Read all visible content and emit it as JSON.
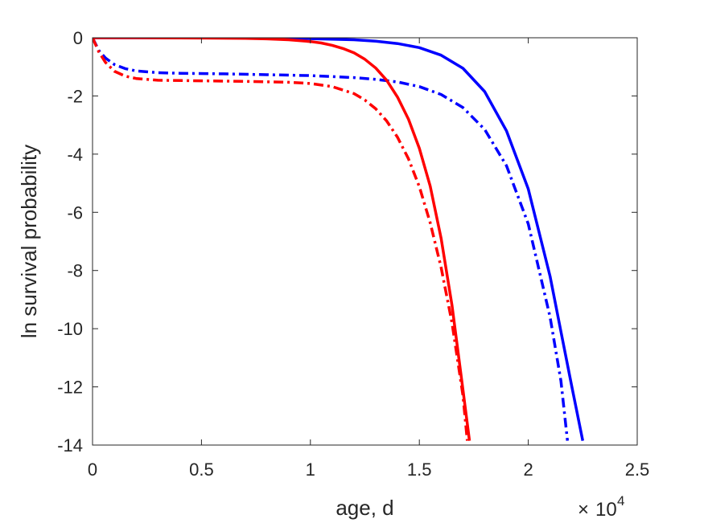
{
  "chart_data": {
    "type": "line",
    "xlabel": "age, d",
    "ylabel": "ln survival probability",
    "x_multiplier": {
      "base": "10",
      "exponent": "4"
    },
    "xlim": [
      0,
      25000
    ],
    "ylim": [
      -14,
      0
    ],
    "xticks": [
      0,
      5000,
      10000,
      15000,
      20000,
      25000
    ],
    "xtick_labels": [
      "0",
      "0.5",
      "1",
      "1.5",
      "2",
      "2.5"
    ],
    "yticks": [
      0,
      -2,
      -4,
      -6,
      -8,
      -10,
      -12,
      -14
    ],
    "ytick_labels": [
      "0",
      "-2",
      "-4",
      "-6",
      "-8",
      "-10",
      "-12",
      "-14"
    ],
    "grid": false,
    "series": [
      {
        "color": "#0000ff",
        "dash": "solid",
        "x": [
          0,
          2000,
          5000,
          8000,
          10000,
          12000,
          13000,
          14000,
          15000,
          16000,
          17000,
          18000,
          19000,
          20000,
          21000,
          21500,
          22000,
          22500
        ],
        "y": [
          0,
          0,
          0,
          -0.01,
          -0.03,
          -0.07,
          -0.12,
          -0.2,
          -0.34,
          -0.6,
          -1.05,
          -1.85,
          -3.2,
          -5.2,
          -8.2,
          -10.1,
          -12.0,
          -13.85
        ]
      },
      {
        "color": "#0000ff",
        "dash": "dashdot",
        "x": [
          0,
          300,
          600,
          1000,
          1500,
          2000,
          3000,
          4000,
          6000,
          8000,
          10000,
          12000,
          13000,
          14000,
          15000,
          16000,
          17000,
          18000,
          19000,
          20000,
          21000,
          21500,
          21800
        ],
        "y": [
          0,
          -0.45,
          -0.7,
          -0.92,
          -1.06,
          -1.14,
          -1.2,
          -1.22,
          -1.24,
          -1.27,
          -1.3,
          -1.37,
          -1.43,
          -1.52,
          -1.68,
          -1.95,
          -2.4,
          -3.15,
          -4.4,
          -6.4,
          -9.6,
          -11.8,
          -13.85
        ]
      },
      {
        "color": "#ff0000",
        "dash": "solid",
        "x": [
          0,
          2000,
          5000,
          7000,
          8000,
          9000,
          10000,
          10500,
          11000,
          11500,
          12000,
          12500,
          13000,
          13500,
          14000,
          14500,
          15000,
          15500,
          16000,
          16500,
          17000,
          17300
        ],
        "y": [
          0,
          0,
          -0.01,
          -0.02,
          -0.04,
          -0.07,
          -0.13,
          -0.18,
          -0.26,
          -0.37,
          -0.52,
          -0.74,
          -1.04,
          -1.46,
          -2.04,
          -2.8,
          -3.8,
          -5.1,
          -6.9,
          -9.2,
          -12.1,
          -13.85
        ]
      },
      {
        "color": "#ff0000",
        "dash": "dashdot",
        "x": [
          0,
          300,
          600,
          1000,
          1500,
          2000,
          3000,
          5000,
          7000,
          9000,
          10000,
          11000,
          12000,
          12500,
          13000,
          13500,
          14000,
          14500,
          15000,
          15500,
          16000,
          16500,
          17000,
          17200
        ],
        "y": [
          0,
          -0.5,
          -0.85,
          -1.15,
          -1.32,
          -1.4,
          -1.46,
          -1.48,
          -1.5,
          -1.53,
          -1.57,
          -1.68,
          -1.92,
          -2.14,
          -2.44,
          -2.86,
          -3.42,
          -4.16,
          -5.12,
          -6.36,
          -7.9,
          -9.8,
          -12.3,
          -13.85
        ]
      }
    ]
  }
}
